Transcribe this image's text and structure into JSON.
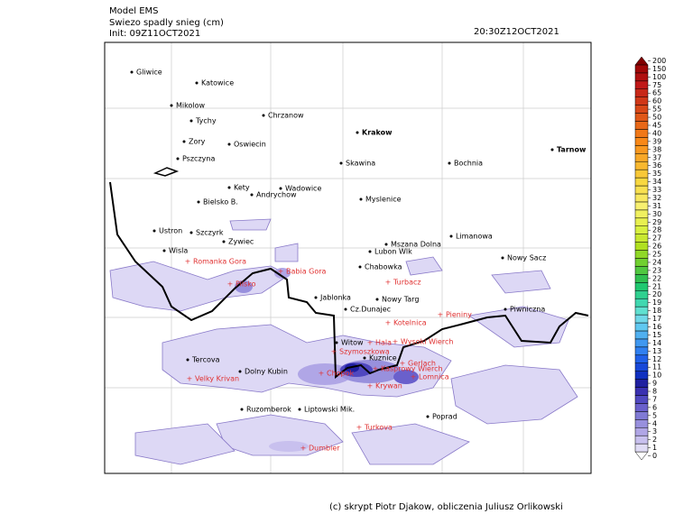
{
  "header": {
    "model": "Model EMS",
    "title": "Swiezo spadly snieg (cm)",
    "init": "Init: 09Z11OCT2021",
    "valid": "20:30Z12OCT2021"
  },
  "cities": [
    "Gliwice",
    "Katowice",
    "Mikolow",
    "Tychy",
    "Chrzanow",
    "Zory",
    "Oswiecin",
    "Krakow",
    "Tarnow",
    "Pszczyna",
    "Skawina",
    "Bochnia",
    "Kety",
    "Wadowice",
    "Andrychow",
    "Bielsko B.",
    "Myslenice",
    "Ustron",
    "Szczyrk",
    "Limanowa",
    "Zywiec",
    "Mszana Dolna",
    "Wisla",
    "Lubon Wlk",
    "Nowy Sacz",
    "Chabowka",
    "Jablonka",
    "Nowy Targ",
    "Cz.Dunajec",
    "Piwniczna",
    "Witow",
    "Kuznice",
    "Tercova",
    "Dolny Kubin",
    "Ruzomberok",
    "Liptowski Mik.",
    "Poprad"
  ],
  "peaks": [
    "Romanka Gora",
    "Pilsko",
    "Babia Gora",
    "Turbacz",
    "Pieniny",
    "Kotelnica",
    "Hala",
    "Wysoki Wierch",
    "Szymoszkowa",
    "Chopok",
    "Kasprowy Wierch",
    "Gerlach",
    "Lomnica",
    "Krywan",
    "Velky Krivan",
    "Turkova",
    "Dumbier"
  ],
  "colorbar": {
    "levels": [
      0,
      1,
      2,
      3,
      4,
      5,
      6,
      7,
      8,
      9,
      10,
      11,
      12,
      13,
      14,
      15,
      16,
      17,
      18,
      19,
      20,
      21,
      22,
      23,
      24,
      25,
      26,
      27,
      28,
      29,
      30,
      31,
      32,
      33,
      34,
      35,
      36,
      37,
      38,
      39,
      40,
      45,
      50,
      55,
      60,
      65,
      75,
      100,
      150,
      200
    ],
    "colors": [
      "#ffffff",
      "#e0dcf5",
      "#c8c0ee",
      "#b0a6e6",
      "#9890dd",
      "#807ad4",
      "#6a60cc",
      "#5048c0",
      "#3a30b0",
      "#2020a0",
      "#1030c0",
      "#1848d8",
      "#2060e8",
      "#3080f0",
      "#4098f0",
      "#50b0f0",
      "#60c8f0",
      "#70d8e8",
      "#60e0d0",
      "#40d8b0",
      "#30d090",
      "#20c870",
      "#30c050",
      "#50c840",
      "#70d030",
      "#90d828",
      "#b0e020",
      "#c8e830",
      "#d8f040",
      "#e8f050",
      "#f0f060",
      "#f8f070",
      "#f8e860",
      "#f8e050",
      "#f8d840",
      "#f8c838",
      "#f8b830",
      "#f8a828",
      "#f89820",
      "#f88818",
      "#f07818",
      "#e86818",
      "#e05818",
      "#d84818",
      "#d03818",
      "#c82818",
      "#c01818",
      "#b01010",
      "#a00808",
      "#800000"
    ]
  },
  "footer": "(c) skrypt Piotr Djakow, obliczenia Juliusz Orlikowski"
}
